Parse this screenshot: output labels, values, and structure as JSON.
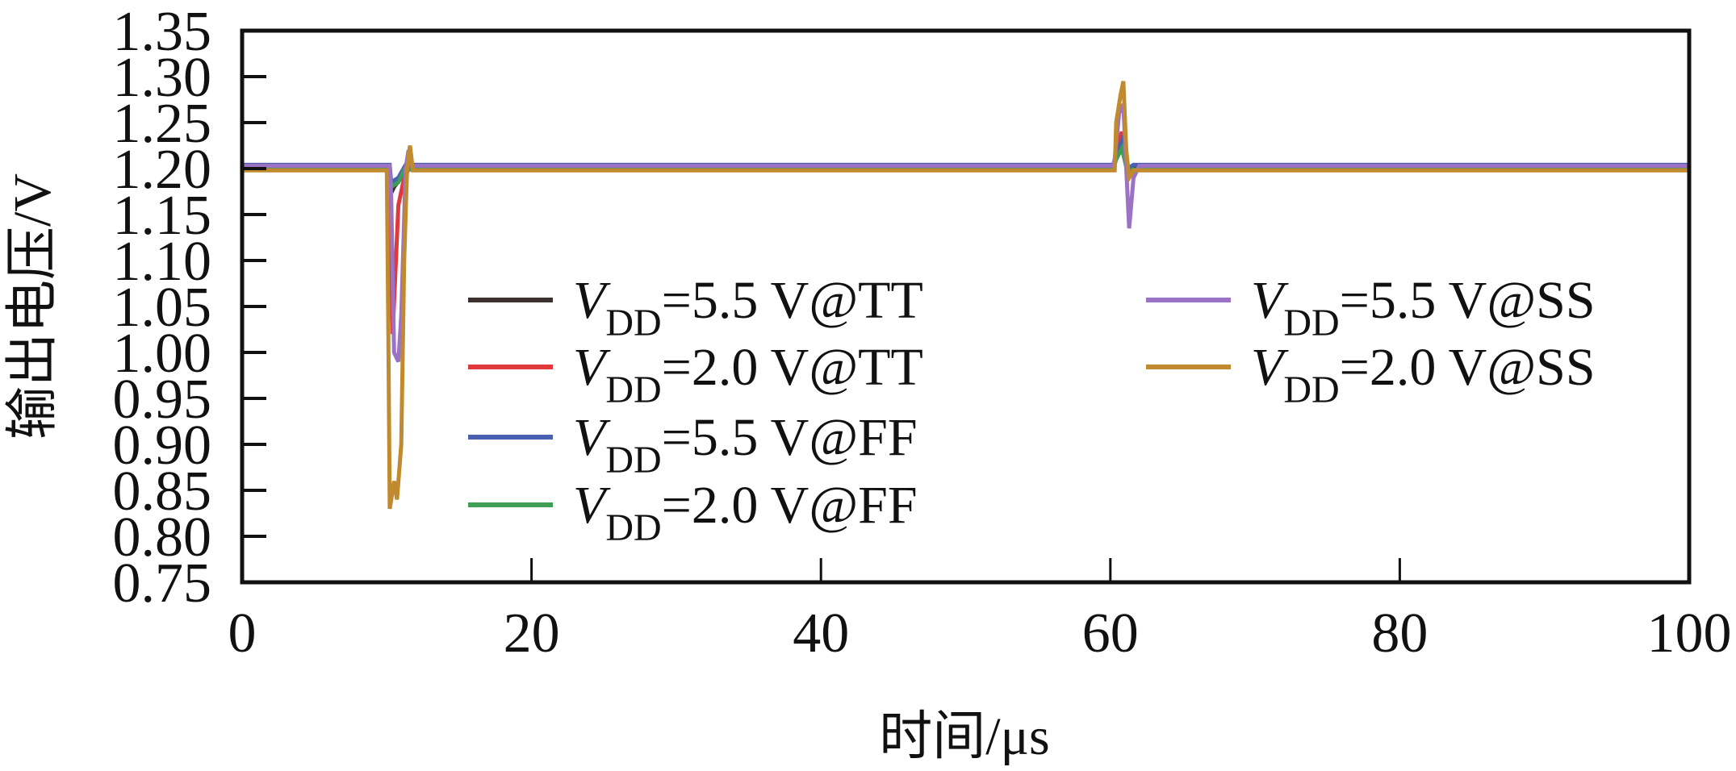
{
  "chart_data": {
    "type": "line",
    "title": "",
    "xlabel": "时间/μs",
    "ylabel": "输出电压/V",
    "xlim": [
      0,
      100
    ],
    "ylim": [
      0.75,
      1.35
    ],
    "x_ticks": [
      "0",
      "20",
      "40",
      "60",
      "80",
      "100"
    ],
    "y_ticks": [
      "0.75",
      "0.80",
      "0.85",
      "0.90",
      "0.95",
      "1.00",
      "1.05",
      "1.10",
      "1.15",
      "1.20",
      "1.25",
      "1.30",
      "1.35"
    ],
    "grid": false,
    "legend_placement": "center-left, two columns",
    "series": [
      {
        "name": "VDD=5.5 V@TT",
        "label_main": "V",
        "label_sub": "DD",
        "label_rest": "=5.5 V@TT",
        "color": "#3b302e",
        "x": [
          0,
          10.1,
          10.2,
          10.5,
          11.0,
          11.3,
          60.2,
          60.4,
          60.8,
          61.2,
          61.6,
          100
        ],
        "y": [
          1.202,
          1.202,
          1.17,
          1.18,
          1.19,
          1.202,
          1.202,
          1.215,
          1.225,
          1.195,
          1.202,
          1.202
        ]
      },
      {
        "name": "VDD=2.0 V@TT",
        "label_main": "V",
        "label_sub": "DD",
        "label_rest": "=2.0 V@TT",
        "color": "#e0393b",
        "x": [
          0,
          10.1,
          10.2,
          10.4,
          10.8,
          11.2,
          11.5,
          60.2,
          60.4,
          60.8,
          61.2,
          61.8,
          100
        ],
        "y": [
          1.199,
          1.199,
          1.17,
          1.02,
          1.16,
          1.19,
          1.199,
          1.199,
          1.22,
          1.24,
          1.19,
          1.199,
          1.199
        ]
      },
      {
        "name": "VDD=5.5 V@FF",
        "label_main": "V",
        "label_sub": "DD",
        "label_rest": "=5.5 V@FF",
        "color": "#4a60b2",
        "x": [
          0,
          10.2,
          10.3,
          10.8,
          11.3,
          60.2,
          60.4,
          60.8,
          61.2,
          61.6,
          100
        ],
        "y": [
          1.204,
          1.204,
          1.185,
          1.19,
          1.204,
          1.204,
          1.215,
          1.23,
          1.2,
          1.204,
          1.204
        ]
      },
      {
        "name": "VDD=2.0 V@FF",
        "label_main": "V",
        "label_sub": "DD",
        "label_rest": "=2.0 V@FF",
        "color": "#3e9e55",
        "x": [
          0,
          10.2,
          10.3,
          10.8,
          11.2,
          60.2,
          60.4,
          60.8,
          61.2,
          61.6,
          100
        ],
        "y": [
          1.199,
          1.199,
          1.18,
          1.185,
          1.199,
          1.199,
          1.21,
          1.222,
          1.195,
          1.199,
          1.199
        ]
      },
      {
        "name": "VDD=5.5 V@SS",
        "label_main": "V",
        "label_sub": "DD",
        "label_rest": "=5.5 V@SS",
        "color": "#9c72c4",
        "x": [
          0,
          10.2,
          10.3,
          10.5,
          10.8,
          11.0,
          11.3,
          11.5,
          11.7,
          60.2,
          60.3,
          60.6,
          60.9,
          61.1,
          61.3,
          61.6,
          62.0,
          100
        ],
        "y": [
          1.203,
          1.203,
          1.17,
          1.0,
          0.99,
          1.04,
          1.2,
          1.22,
          1.203,
          1.203,
          1.21,
          1.26,
          1.27,
          1.2,
          1.135,
          1.19,
          1.203,
          1.203
        ]
      },
      {
        "name": "VDD=2.0 V@SS",
        "label_main": "V",
        "label_sub": "DD",
        "label_rest": "=2.0 V@SS",
        "color": "#c18a2e",
        "x": [
          0,
          10.0,
          10.1,
          10.2,
          10.5,
          10.7,
          11.0,
          11.2,
          11.4,
          11.6,
          11.8,
          60.2,
          60.3,
          60.4,
          60.7,
          60.9,
          61.1,
          61.3,
          61.6,
          100
        ],
        "y": [
          1.198,
          1.198,
          1.03,
          0.83,
          0.86,
          0.84,
          0.9,
          1.1,
          1.2,
          1.225,
          1.198,
          1.198,
          1.198,
          1.25,
          1.28,
          1.295,
          1.22,
          1.19,
          1.198,
          1.198
        ]
      }
    ]
  }
}
